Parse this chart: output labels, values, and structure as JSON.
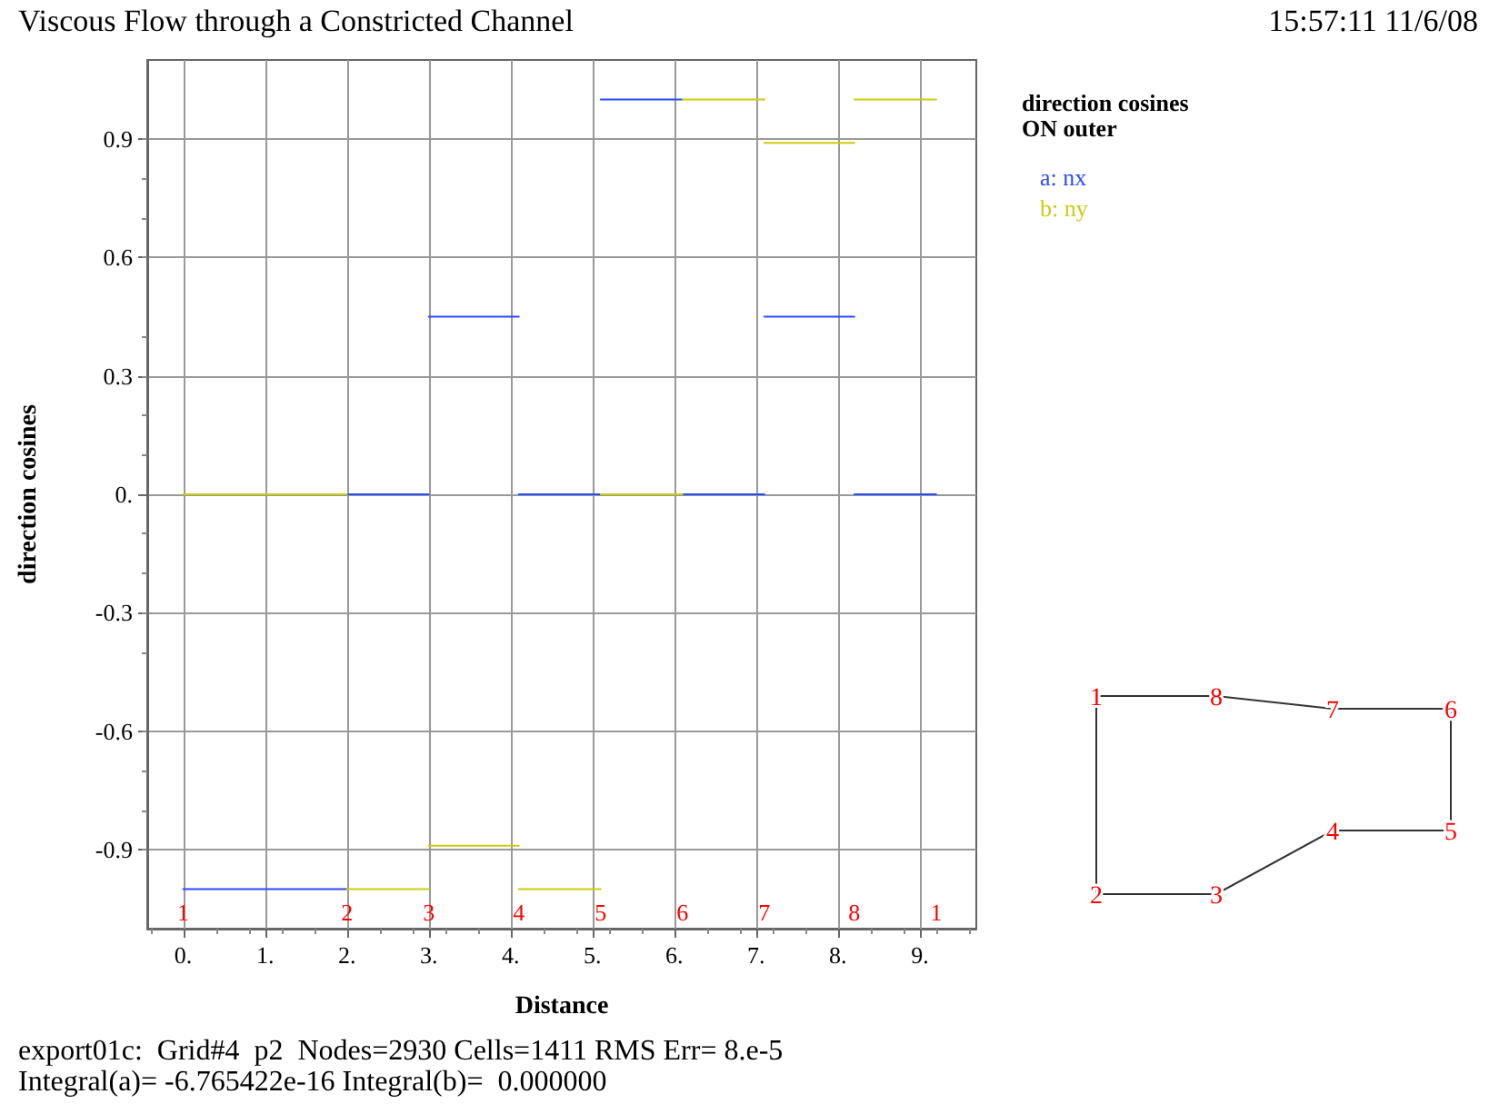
{
  "chart_data": {
    "type": "line",
    "title": "Viscous Flow through a Constricted Channel",
    "xlabel": "Distance",
    "ylabel": "direction cosines",
    "legend_title": "direction cosines\nON outer",
    "series": [
      {
        "name": "a: nx",
        "color": "#2a4bff",
        "x": [
          0,
          2,
          null,
          2,
          3,
          null,
          3,
          4.1,
          null,
          4.1,
          5.1,
          null,
          5.1,
          6.1,
          null,
          6.1,
          7.1,
          null,
          7.1,
          8.2,
          null,
          8.2,
          9.2
        ],
        "values": [
          -1,
          -1,
          null,
          0,
          0,
          null,
          0.45,
          0.45,
          null,
          0,
          0,
          null,
          1,
          1,
          null,
          0,
          0,
          null,
          0.45,
          0.45,
          null,
          0,
          0
        ]
      },
      {
        "name": "b: ny",
        "color": "#cccc11",
        "x": [
          0,
          2,
          null,
          2,
          3,
          null,
          3,
          4.1,
          null,
          4.1,
          5.1,
          null,
          5.1,
          6.1,
          null,
          6.1,
          7.1,
          null,
          7.1,
          8.2,
          null,
          8.2,
          9.2
        ],
        "values": [
          0,
          0,
          null,
          -1,
          -1,
          null,
          -0.89,
          -0.89,
          null,
          -1,
          -1,
          null,
          0,
          0,
          null,
          1,
          1,
          null,
          0.89,
          0.89,
          null,
          1,
          1
        ]
      }
    ],
    "xlim": [
      -0.44,
      9.69
    ],
    "xticks": [
      {
        "value": 0,
        "label": "0."
      },
      {
        "value": 1,
        "label": "1."
      },
      {
        "value": 2,
        "label": "2."
      },
      {
        "value": 3,
        "label": "3."
      },
      {
        "value": 4,
        "label": "4."
      },
      {
        "value": 5,
        "label": "5."
      },
      {
        "value": 6,
        "label": "6."
      },
      {
        "value": 7,
        "label": "7."
      },
      {
        "value": 8,
        "label": "8."
      },
      {
        "value": 9,
        "label": "9."
      }
    ],
    "ylim": [
      -1.1,
      1.1
    ],
    "yticks": [
      -0.9,
      -0.6,
      -0.3,
      {
        "value": 0,
        "label": "0."
      },
      0.3,
      0.6,
      0.9
    ],
    "grid": true,
    "legend": "top right",
    "marker": "none",
    "line_style": "solid",
    "annotations": [
      "15:57:11 11/6/08",
      "export01c:  Grid#4  p2  Nodes=2930 Cells=1411 RMS Err= 8.e-5",
      "Integral(a)= -6.765422e-16 Integral(b)=  0.000000",
      "1",
      "2",
      "3",
      "4",
      "5",
      "6",
      "7",
      "8",
      "1"
    ]
  }
}
